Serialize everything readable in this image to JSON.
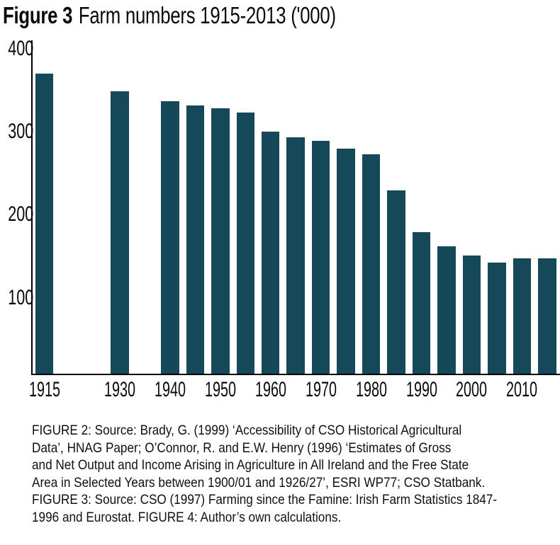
{
  "title": {
    "prefix": "Figure 3",
    "text": "Farm numbers 1915-2013 ('000)"
  },
  "colors": {
    "bar": "#15495a",
    "axis": "#000000",
    "background": "#ffffff",
    "text": "#0a0a0a"
  },
  "chart_data": {
    "type": "bar",
    "title": "Figure 3 Farm numbers 1915-2013 ('000)",
    "unit": "thousands of farms",
    "x": [
      1915,
      1930,
      1940,
      1945,
      1950,
      1955,
      1960,
      1965,
      1970,
      1975,
      1980,
      1985,
      1990,
      1995,
      2000,
      2005,
      2010,
      2013
    ],
    "values": [
      369,
      347,
      335,
      330,
      326,
      321,
      298,
      291,
      286,
      277,
      270,
      225,
      174,
      156,
      145,
      136,
      142,
      142
    ],
    "xlabel": "",
    "ylabel": "",
    "ylim": [
      0,
      400
    ],
    "yticks": [
      400,
      300,
      200,
      100
    ],
    "xticks": [
      1915,
      1930,
      1940,
      1950,
      1960,
      1970,
      1980,
      1990,
      2000,
      2010
    ],
    "grid": false,
    "legend": false,
    "bar_color": "#15495a"
  },
  "caption": {
    "lines": [
      "FIGURE 2: Source: Brady, G. (1999) ‘Accessibility of CSO Historical Agricultural",
      "Data’, HNAG Paper; O’Connor, R. and E.W. Henry (1996) ‘Estimates of Gross",
      "and Net Output and Income Arising in Agriculture in All Ireland and the Free State",
      "Area in Selected Years between 1900/01 and 1926/27’, ESRI WP77; CSO Statbank.",
      "FIGURE 3: Source: CSO (1997) Farming since the Famine: Irish Farm Statistics 1847-",
      "1996 and Eurostat. FIGURE 4: Author’s own calculations."
    ]
  }
}
